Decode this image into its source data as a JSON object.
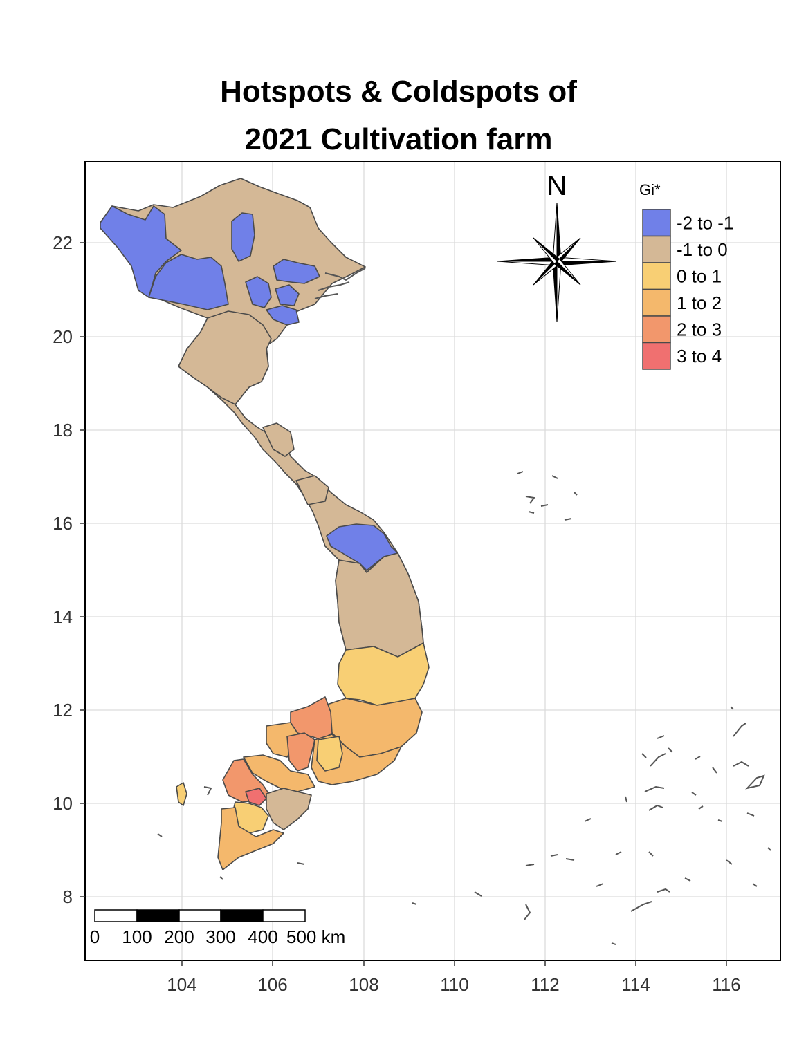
{
  "title_lines": [
    "Hotspots & Coldspots of",
    "2021 Cultivation farm"
  ],
  "colors": {
    "cold": "#7080E8",
    "neutral": "#D4B896",
    "warm1": "#F8CF74",
    "warm2": "#F4B86C",
    "warm3": "#F2976C",
    "hot": "#F07070"
  },
  "axes": {
    "x_ticks": [
      "104",
      "106",
      "108",
      "110",
      "112",
      "114",
      "116"
    ],
    "y_ticks": [
      "22",
      "20",
      "18",
      "16",
      "14",
      "12",
      "10",
      "8"
    ],
    "x_range": [
      102,
      117.2
    ],
    "y_range": [
      6.8,
      23.8
    ],
    "grid": true
  },
  "legend": {
    "title": "Gi*",
    "position": "top-right",
    "items": [
      {
        "label": "-2 to -1",
        "color": "#7080E8"
      },
      {
        "label": "-1 to 0",
        "color": "#D4B896"
      },
      {
        "label": "0 to 1",
        "color": "#F8CF74"
      },
      {
        "label": "1 to 2",
        "color": "#F4B86C"
      },
      {
        "label": "2 to 3",
        "color": "#F2976C"
      },
      {
        "label": "3 to 4",
        "color": "#F07070"
      }
    ]
  },
  "north_arrow": {
    "label": "N"
  },
  "scale_bar": {
    "labels": [
      "0",
      "100",
      "200",
      "300",
      "400",
      "500 km"
    ]
  }
}
